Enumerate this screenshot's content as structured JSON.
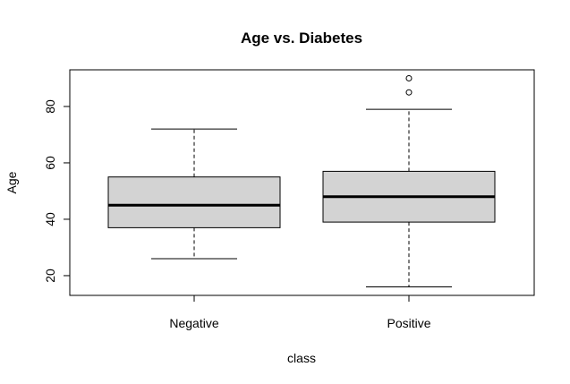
{
  "chart_data": {
    "type": "boxplot",
    "title": "Age vs. Diabetes",
    "xlabel": "class",
    "ylabel": "Age",
    "categories": [
      "Negative",
      "Positive"
    ],
    "boxes": [
      {
        "category": "Negative",
        "whisker_low": 26,
        "q1": 37,
        "median": 45,
        "q3": 55,
        "whisker_high": 72,
        "outliers": []
      },
      {
        "category": "Positive",
        "whisker_low": 16,
        "q1": 39,
        "median": 48,
        "q3": 57,
        "whisker_high": 79,
        "outliers": [
          85,
          90
        ]
      }
    ],
    "y_ticks": [
      20,
      40,
      60,
      80
    ],
    "ylim": [
      13,
      93
    ],
    "grid": false,
    "box_fill": "#d3d3d3"
  }
}
